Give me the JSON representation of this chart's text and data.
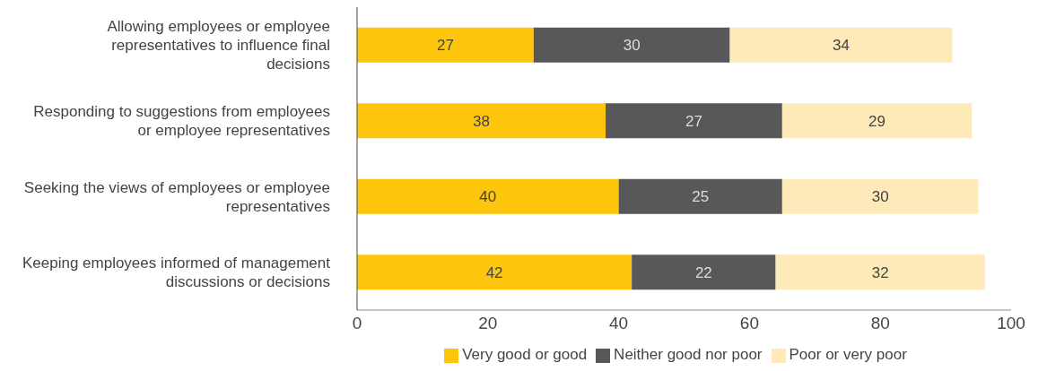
{
  "chart_data": {
    "type": "bar",
    "orientation": "horizontal",
    "stacked": true,
    "categories": [
      "Allowing employees or employee representatives to influence final decisions",
      "Responding to suggestions from employees or employee representatives",
      "Seeking the views of employees or employee representatives",
      "Keeping employees informed of management discussions or decisions"
    ],
    "series": [
      {
        "name": "Very good or good",
        "color": "#fdc50c",
        "values": [
          27,
          38,
          40,
          42
        ]
      },
      {
        "name": "Neither good nor poor",
        "color": "#58585a",
        "values": [
          30,
          27,
          25,
          22
        ]
      },
      {
        "name": "Poor or very poor",
        "color": "#feeab8",
        "values": [
          34,
          29,
          30,
          32
        ]
      }
    ],
    "xlim": [
      0,
      100
    ],
    "xticks": [
      0,
      20,
      40,
      60,
      80,
      100
    ],
    "data_labels": true,
    "legend": "bottom",
    "grid": false
  }
}
